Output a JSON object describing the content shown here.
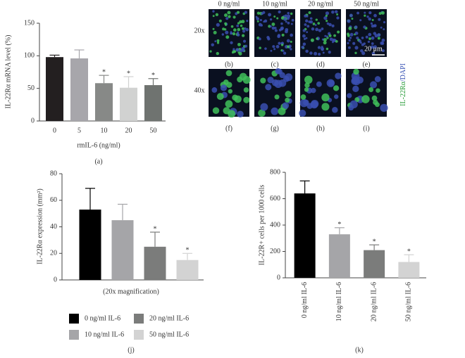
{
  "chart_data": [
    {
      "type": "bar",
      "panel": "(a)",
      "y_label": "IL-22Rα mRNA level (%)",
      "x_label": "rmIL-6 (ng/ml)",
      "categories": [
        "0",
        "5",
        "10",
        "20",
        "50"
      ],
      "values": [
        98,
        96,
        58,
        51,
        55
      ],
      "errors": [
        3,
        13,
        12,
        17,
        10
      ],
      "colors": [
        "#231f20",
        "#a7a6ab",
        "#878987",
        "#d1d2d1",
        "#6f7370"
      ],
      "significance": [
        null,
        null,
        "*",
        "*",
        "*"
      ],
      "ylim": [
        0,
        150
      ],
      "yticks": [
        0,
        50,
        100,
        150
      ]
    },
    {
      "type": "bar",
      "panel": "(j)",
      "y_label": "IL-22Rα expression (mm²)",
      "x_label": "(20x magnification)",
      "categories": [
        "0 ng/ml IL-6",
        "10 ng/ml IL-6",
        "20 ng/ml IL-6",
        "50 ng/ml IL-6"
      ],
      "values": [
        53,
        45,
        25,
        15
      ],
      "errors": [
        16,
        12,
        11,
        5
      ],
      "colors": [
        "#000000",
        "#a5a5a8",
        "#7b7c7b",
        "#d3d3d3"
      ],
      "significance": [
        null,
        null,
        "*",
        "*"
      ],
      "legend": true,
      "ylim": [
        0,
        80
      ],
      "yticks": [
        0,
        20,
        40,
        60,
        80
      ]
    },
    {
      "type": "bar",
      "panel": "(k)",
      "y_label": "IL-22R+ cells per 1000 cells",
      "categories": [
        "0 ng/ml IL-6",
        "10 ng/ml IL-6",
        "20 ng/ml IL-6",
        "50 ng/ml IL-6"
      ],
      "values": [
        640,
        330,
        210,
        120
      ],
      "errors": [
        95,
        50,
        40,
        55
      ],
      "colors": [
        "#000000",
        "#a5a5a8",
        "#7b7c7b",
        "#d3d3d3"
      ],
      "significance": [
        null,
        "*",
        "*",
        "*"
      ],
      "ylim": [
        0,
        800
      ],
      "yticks": [
        0,
        200,
        400,
        600,
        800
      ]
    }
  ],
  "micrographs": {
    "columns": [
      "0 ng/ml",
      "10 ng/ml",
      "20 ng/ml",
      "50 ng/ml"
    ],
    "rows": [
      "20x",
      "40x"
    ],
    "labels": [
      [
        "(b)",
        "(c)",
        "(d)",
        "(e)"
      ],
      [
        "(f)",
        "(g)",
        "(h)",
        "(i)"
      ]
    ],
    "scale_bar": "20 μm",
    "stain_marker": "IL-22Rα",
    "stain_counter": "/DAPI"
  }
}
